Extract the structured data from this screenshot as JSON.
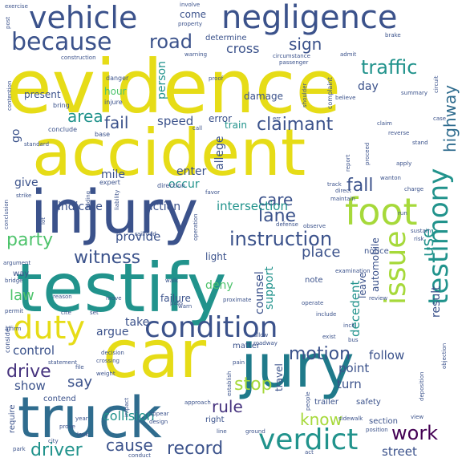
{
  "palette": {
    "yellow": "#e6dc17",
    "lime": "#a6d93a",
    "green": "#4dc36b",
    "teal": "#21938c",
    "tealdark": "#1f7a8a",
    "blue": "#2f6c8e",
    "navy": "#3b528b",
    "indigo": "#46337e",
    "purple": "#440154"
  },
  "words": [
    {
      "text": "evidence",
      "color": "yellow",
      "weight": 100
    },
    {
      "text": "accident",
      "color": "yellow",
      "weight": 90
    },
    {
      "text": "testify",
      "color": "teal",
      "weight": 95
    },
    {
      "text": "injury",
      "color": "navy",
      "weight": 88
    },
    {
      "text": "car",
      "color": "yellow",
      "weight": 85
    },
    {
      "text": "jury",
      "color": "tealdark",
      "weight": 84
    },
    {
      "text": "truck",
      "color": "blue",
      "weight": 80
    },
    {
      "text": "vehicle",
      "color": "navy",
      "weight": 70
    },
    {
      "text": "negligence",
      "color": "navy",
      "weight": 72
    },
    {
      "text": "foot",
      "color": "lime",
      "weight": 55
    },
    {
      "text": "testimony",
      "color": "teal",
      "weight": 50
    },
    {
      "text": "issue",
      "color": "lime",
      "weight": 48
    },
    {
      "text": "condition",
      "color": "navy",
      "weight": 50
    },
    {
      "text": "duty",
      "color": "yellow",
      "weight": 52
    },
    {
      "text": "verdict",
      "color": "teal",
      "weight": 50
    },
    {
      "text": "because",
      "color": "navy",
      "weight": 48
    },
    {
      "text": "road",
      "color": "navy",
      "weight": 40
    },
    {
      "text": "traffic",
      "color": "teal",
      "weight": 36
    },
    {
      "text": "instruction",
      "color": "navy",
      "weight": 38
    },
    {
      "text": "witness",
      "color": "navy",
      "weight": 34
    },
    {
      "text": "claimant",
      "color": "navy",
      "weight": 34
    },
    {
      "text": "motion",
      "color": "navy",
      "weight": 34
    },
    {
      "text": "record",
      "color": "navy",
      "weight": 32
    },
    {
      "text": "driver",
      "color": "teal",
      "weight": 32
    },
    {
      "text": "work",
      "color": "purple",
      "weight": 34
    },
    {
      "text": "drive",
      "color": "indigo",
      "weight": 30
    },
    {
      "text": "fall",
      "color": "navy",
      "weight": 32
    },
    {
      "text": "party",
      "color": "green",
      "weight": 28
    },
    {
      "text": "stop",
      "color": "lime",
      "weight": 30
    },
    {
      "text": "lane",
      "color": "navy",
      "weight": 28
    },
    {
      "text": "care",
      "color": "navy",
      "weight": 26
    },
    {
      "text": "sign",
      "color": "navy",
      "weight": 24
    },
    {
      "text": "highway",
      "color": "blue",
      "weight": 26
    },
    {
      "text": "area",
      "color": "teal",
      "weight": 26
    },
    {
      "text": "fail",
      "color": "navy",
      "weight": 26
    },
    {
      "text": "cause",
      "color": "navy",
      "weight": 24
    },
    {
      "text": "rule",
      "color": "indigo",
      "weight": 26
    },
    {
      "text": "know",
      "color": "lime",
      "weight": 26
    },
    {
      "text": "use",
      "color": "teal",
      "weight": 24
    },
    {
      "text": "result",
      "color": "navy",
      "weight": 22
    },
    {
      "text": "law",
      "color": "green",
      "weight": 22
    },
    {
      "text": "say",
      "color": "navy",
      "weight": 22
    },
    {
      "text": "speed",
      "color": "navy",
      "weight": 18
    },
    {
      "text": "cross",
      "color": "navy",
      "weight": 18
    },
    {
      "text": "place",
      "color": "navy",
      "weight": 18
    },
    {
      "text": "collision",
      "color": "teal",
      "weight": 18
    },
    {
      "text": "control",
      "color": "navy",
      "weight": 18
    },
    {
      "text": "show",
      "color": "navy",
      "weight": 16
    },
    {
      "text": "provide",
      "color": "navy",
      "weight": 16
    },
    {
      "text": "intersection",
      "color": "teal",
      "weight": 16
    },
    {
      "text": "indicate",
      "color": "navy",
      "weight": 14
    },
    {
      "text": "action",
      "color": "navy",
      "weight": 14
    },
    {
      "text": "decedent",
      "color": "teal",
      "weight": 14
    },
    {
      "text": "follow",
      "color": "navy",
      "weight": 14
    },
    {
      "text": "point",
      "color": "navy",
      "weight": 14
    },
    {
      "text": "turn",
      "color": "navy",
      "weight": 14
    },
    {
      "text": "street",
      "color": "navy",
      "weight": 14
    },
    {
      "text": "deny",
      "color": "green",
      "weight": 14
    },
    {
      "text": "take",
      "color": "navy",
      "weight": 14
    },
    {
      "text": "argue",
      "color": "navy",
      "weight": 14
    },
    {
      "text": "counsel",
      "color": "navy",
      "weight": 14
    },
    {
      "text": "support",
      "color": "teal",
      "weight": 14
    },
    {
      "text": "enter",
      "color": "navy",
      "weight": 14
    },
    {
      "text": "occur",
      "color": "teal",
      "weight": 14
    },
    {
      "text": "allege",
      "color": "navy",
      "weight": 14
    },
    {
      "text": "mile",
      "color": "navy",
      "weight": 14
    },
    {
      "text": "give",
      "color": "navy",
      "weight": 14
    },
    {
      "text": "go",
      "color": "navy",
      "weight": 14
    },
    {
      "text": "day",
      "color": "navy",
      "weight": 14
    },
    {
      "text": "present",
      "color": "navy",
      "weight": 12
    },
    {
      "text": "person",
      "color": "teal",
      "weight": 14
    },
    {
      "text": "hour",
      "color": "green",
      "weight": 12
    },
    {
      "text": "error",
      "color": "navy",
      "weight": 12
    },
    {
      "text": "train",
      "color": "teal",
      "weight": 12
    },
    {
      "text": "damage",
      "color": "navy",
      "weight": 12
    },
    {
      "text": "come",
      "color": "navy",
      "weight": 12
    },
    {
      "text": "determine",
      "color": "navy",
      "weight": 10
    },
    {
      "text": "light",
      "color": "navy",
      "weight": 12
    },
    {
      "text": "leave",
      "color": "navy",
      "weight": 12
    },
    {
      "text": "automobile",
      "color": "navy",
      "weight": 12
    },
    {
      "text": "travel",
      "color": "navy",
      "weight": 12
    },
    {
      "text": "failure",
      "color": "navy",
      "weight": 12
    },
    {
      "text": "note",
      "color": "navy",
      "weight": 10
    },
    {
      "text": "notice",
      "color": "navy",
      "weight": 10
    },
    {
      "text": "safety",
      "color": "navy",
      "weight": 10
    },
    {
      "text": "trailer",
      "color": "navy",
      "weight": 10
    },
    {
      "text": "section",
      "color": "navy",
      "weight": 10
    },
    {
      "text": "right",
      "color": "navy",
      "weight": 10
    },
    {
      "text": "matter",
      "color": "navy",
      "weight": 10
    },
    {
      "text": "contend",
      "color": "navy",
      "weight": 10
    },
    {
      "text": "require",
      "color": "navy",
      "weight": 10
    },
    {
      "text": "way",
      "color": "navy",
      "weight": 10
    },
    {
      "text": "consider",
      "color": "navy",
      "weight": 8
    },
    {
      "text": "complaint",
      "color": "navy",
      "weight": 8
    },
    {
      "text": "conclude",
      "color": "navy",
      "weight": 8
    },
    {
      "text": "base",
      "color": "navy",
      "weight": 8
    },
    {
      "text": "bring",
      "color": "navy",
      "weight": 8
    },
    {
      "text": "expert",
      "color": "navy",
      "weight": 8
    },
    {
      "text": "direction",
      "color": "navy",
      "weight": 8
    },
    {
      "text": "danger",
      "color": "navy",
      "weight": 8
    },
    {
      "text": "injure",
      "color": "navy",
      "weight": 8
    },
    {
      "text": "warning",
      "color": "navy",
      "weight": 6
    },
    {
      "text": "circumstance",
      "color": "navy",
      "weight": 6
    },
    {
      "text": "passenger",
      "color": "navy",
      "weight": 6
    },
    {
      "text": "shoulder",
      "color": "navy",
      "weight": 6
    },
    {
      "text": "believe",
      "color": "navy",
      "weight": 6
    },
    {
      "text": "claim",
      "color": "navy",
      "weight": 6
    },
    {
      "text": "reverse",
      "color": "navy",
      "weight": 6
    },
    {
      "text": "stand",
      "color": "navy",
      "weight": 6
    },
    {
      "text": "apply",
      "color": "navy",
      "weight": 6
    },
    {
      "text": "maintain",
      "color": "navy",
      "weight": 6
    },
    {
      "text": "direct",
      "color": "navy",
      "weight": 6
    },
    {
      "text": "track",
      "color": "navy",
      "weight": 6
    },
    {
      "text": "observe",
      "color": "navy",
      "weight": 6
    },
    {
      "text": "defense",
      "color": "navy",
      "weight": 6
    },
    {
      "text": "favor",
      "color": "navy",
      "weight": 6
    },
    {
      "text": "walk",
      "color": "navy",
      "weight": 6
    },
    {
      "text": "proximate",
      "color": "navy",
      "weight": 6
    },
    {
      "text": "establish",
      "color": "navy",
      "weight": 6
    },
    {
      "text": "approach",
      "color": "navy",
      "weight": 6
    },
    {
      "text": "design",
      "color": "navy",
      "weight": 6
    },
    {
      "text": "appear",
      "color": "navy",
      "weight": 6
    },
    {
      "text": "impact",
      "color": "navy",
      "weight": 6
    },
    {
      "text": "position",
      "color": "navy",
      "weight": 6
    },
    {
      "text": "sidewalk",
      "color": "navy",
      "weight": 6
    },
    {
      "text": "people",
      "color": "navy",
      "weight": 6
    },
    {
      "text": "act",
      "color": "navy",
      "weight": 6
    },
    {
      "text": "line",
      "color": "navy",
      "weight": 6
    },
    {
      "text": "ground",
      "color": "navy",
      "weight": 6
    },
    {
      "text": "conduct",
      "color": "navy",
      "weight": 6
    },
    {
      "text": "look",
      "color": "navy",
      "weight": 6
    },
    {
      "text": "prove",
      "color": "navy",
      "weight": 6
    },
    {
      "text": "city",
      "color": "navy",
      "weight": 6
    },
    {
      "text": "park",
      "color": "navy",
      "weight": 6
    },
    {
      "text": "year",
      "color": "navy",
      "weight": 6
    },
    {
      "text": "file",
      "color": "navy",
      "weight": 6
    },
    {
      "text": "statement",
      "color": "navy",
      "weight": 6
    },
    {
      "text": "weight",
      "color": "navy",
      "weight": 6
    },
    {
      "text": "crossing",
      "color": "navy",
      "weight": 6
    },
    {
      "text": "decision",
      "color": "navy",
      "weight": 6
    },
    {
      "text": "warn",
      "color": "navy",
      "weight": 6
    },
    {
      "text": "pass",
      "color": "navy",
      "weight": 6
    },
    {
      "text": "move",
      "color": "navy",
      "weight": 6
    },
    {
      "text": "reason",
      "color": "navy",
      "weight": 6
    },
    {
      "text": "permit",
      "color": "navy",
      "weight": 6
    },
    {
      "text": "bridge",
      "color": "navy",
      "weight": 6
    },
    {
      "text": "argument",
      "color": "navy",
      "weight": 6
    },
    {
      "text": "lot",
      "color": "navy",
      "weight": 6
    },
    {
      "text": "strike",
      "color": "navy",
      "weight": 6
    },
    {
      "text": "standard",
      "color": "navy",
      "weight": 6
    },
    {
      "text": "exercise",
      "color": "navy",
      "weight": 6
    },
    {
      "text": "involve",
      "color": "navy",
      "weight": 6
    },
    {
      "text": "property",
      "color": "navy",
      "weight": 6
    },
    {
      "text": "brake",
      "color": "navy",
      "weight": 6
    },
    {
      "text": "post",
      "color": "navy",
      "weight": 6
    },
    {
      "text": "construction",
      "color": "navy",
      "weight": 6
    },
    {
      "text": "proof",
      "color": "navy",
      "weight": 6
    },
    {
      "text": "circuit",
      "color": "navy",
      "weight": 6
    },
    {
      "text": "summary",
      "color": "navy",
      "weight": 6
    },
    {
      "text": "admit",
      "color": "navy",
      "weight": 6
    },
    {
      "text": "examination",
      "color": "navy",
      "weight": 6
    },
    {
      "text": "review",
      "color": "navy",
      "weight": 6
    },
    {
      "text": "operate",
      "color": "navy",
      "weight": 6
    },
    {
      "text": "include",
      "color": "navy",
      "weight": 6
    },
    {
      "text": "exist",
      "color": "navy",
      "weight": 6
    },
    {
      "text": "inch",
      "color": "navy",
      "weight": 6
    },
    {
      "text": "bus",
      "color": "navy",
      "weight": 6
    },
    {
      "text": "deposition",
      "color": "navy",
      "weight": 6
    },
    {
      "text": "objection",
      "color": "navy",
      "weight": 6
    },
    {
      "text": "risk",
      "color": "navy",
      "weight": 6
    },
    {
      "text": "sustain",
      "color": "navy",
      "weight": 6
    },
    {
      "text": "report",
      "color": "navy",
      "weight": 6
    },
    {
      "text": "charge",
      "color": "navy",
      "weight": 6
    },
    {
      "text": "pain",
      "color": "navy",
      "weight": 6
    },
    {
      "text": "allow",
      "color": "navy",
      "weight": 6
    },
    {
      "text": "roadway",
      "color": "navy",
      "weight": 6
    },
    {
      "text": "finding",
      "color": "navy",
      "weight": 6
    },
    {
      "text": "railroad",
      "color": "navy",
      "weight": 6
    },
    {
      "text": "operation",
      "color": "navy",
      "weight": 6
    },
    {
      "text": "view",
      "color": "navy",
      "weight": 6
    },
    {
      "text": "liability",
      "color": "navy",
      "weight": 6
    },
    {
      "text": "affirm",
      "color": "navy",
      "weight": 6
    },
    {
      "text": "set",
      "color": "navy",
      "weight": 6
    },
    {
      "text": "contention",
      "color": "navy",
      "weight": 6
    },
    {
      "text": "conclusion",
      "color": "navy",
      "weight": 6
    },
    {
      "text": "call",
      "color": "navy",
      "weight": 6
    },
    {
      "text": "proceed",
      "color": "navy",
      "weight": 6
    },
    {
      "text": "wanton",
      "color": "navy",
      "weight": 6
    },
    {
      "text": "run",
      "color": "navy",
      "weight": 6
    },
    {
      "text": "case",
      "color": "navy",
      "weight": 6
    },
    {
      "text": "err",
      "color": "navy",
      "weight": 6
    },
    {
      "text": "cite",
      "color": "navy",
      "weight": 6
    }
  ]
}
